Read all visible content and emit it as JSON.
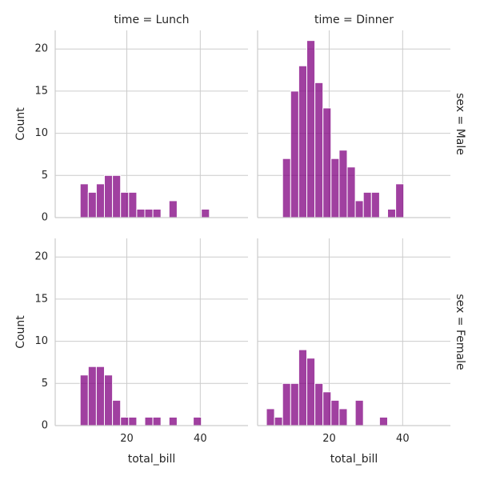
{
  "chart_data": {
    "type": "bar",
    "title": "",
    "xlabel": "total_bill",
    "ylabel": "Count",
    "xlim": [
      0.5,
      53
    ],
    "ylim": [
      0,
      22.2
    ],
    "xticks": [
      20,
      40
    ],
    "yticks": [
      0,
      5,
      10,
      15,
      20
    ],
    "grid": true,
    "legend": "none",
    "bar_color": "#800080",
    "bar_opacity": 0.75,
    "bin_width": 2.2,
    "col_titles": [
      "time = Lunch",
      "time = Dinner"
    ],
    "row_titles": [
      "sex = Male",
      "sex = Female"
    ],
    "panels": [
      {
        "col_title": "time = Lunch",
        "row_title": "sex = Male",
        "bins": [
          {
            "x": 7.3,
            "count": 4
          },
          {
            "x": 9.5,
            "count": 3
          },
          {
            "x": 11.7,
            "count": 4
          },
          {
            "x": 13.9,
            "count": 5
          },
          {
            "x": 16.1,
            "count": 5
          },
          {
            "x": 18.3,
            "count": 3
          },
          {
            "x": 20.5,
            "count": 3
          },
          {
            "x": 22.7,
            "count": 1
          },
          {
            "x": 24.9,
            "count": 1
          },
          {
            "x": 27.1,
            "count": 1
          },
          {
            "x": 31.5,
            "count": 2
          },
          {
            "x": 40.3,
            "count": 1
          }
        ]
      },
      {
        "col_title": "time = Dinner",
        "row_title": "sex = Male",
        "bins": [
          {
            "x": 7.3,
            "count": 7
          },
          {
            "x": 9.5,
            "count": 15
          },
          {
            "x": 11.7,
            "count": 18
          },
          {
            "x": 13.9,
            "count": 21
          },
          {
            "x": 16.1,
            "count": 16
          },
          {
            "x": 18.3,
            "count": 13
          },
          {
            "x": 20.5,
            "count": 7
          },
          {
            "x": 22.7,
            "count": 8
          },
          {
            "x": 24.9,
            "count": 6
          },
          {
            "x": 27.1,
            "count": 2
          },
          {
            "x": 29.3,
            "count": 3
          },
          {
            "x": 31.5,
            "count": 3
          },
          {
            "x": 35.9,
            "count": 1
          },
          {
            "x": 38.1,
            "count": 4
          }
        ]
      },
      {
        "col_title": "time = Lunch",
        "row_title": "sex = Female",
        "bins": [
          {
            "x": 7.3,
            "count": 6
          },
          {
            "x": 9.5,
            "count": 7
          },
          {
            "x": 11.7,
            "count": 7
          },
          {
            "x": 13.9,
            "count": 6
          },
          {
            "x": 16.1,
            "count": 3
          },
          {
            "x": 18.3,
            "count": 1
          },
          {
            "x": 20.5,
            "count": 1
          },
          {
            "x": 24.9,
            "count": 1
          },
          {
            "x": 27.1,
            "count": 1
          },
          {
            "x": 31.5,
            "count": 1
          },
          {
            "x": 38.1,
            "count": 1
          }
        ]
      },
      {
        "col_title": "time = Dinner",
        "row_title": "sex = Female",
        "bins": [
          {
            "x": 2.9,
            "count": 2
          },
          {
            "x": 5.1,
            "count": 1
          },
          {
            "x": 7.3,
            "count": 5
          },
          {
            "x": 9.5,
            "count": 5
          },
          {
            "x": 11.7,
            "count": 9
          },
          {
            "x": 13.9,
            "count": 8
          },
          {
            "x": 16.1,
            "count": 5
          },
          {
            "x": 18.3,
            "count": 4
          },
          {
            "x": 20.5,
            "count": 3
          },
          {
            "x": 22.7,
            "count": 2
          },
          {
            "x": 27.1,
            "count": 3
          },
          {
            "x": 33.7,
            "count": 1
          }
        ]
      }
    ]
  }
}
